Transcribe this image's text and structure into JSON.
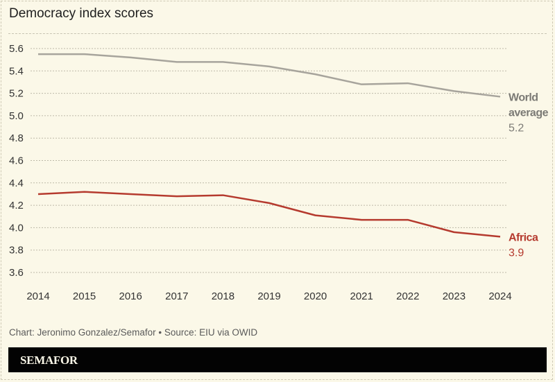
{
  "header": {
    "title": "Democracy index scores"
  },
  "footer": {
    "credit": "Chart: Jeronimo Gonzalez/Semafor • Source: EIU via OWID",
    "brand": "SEMAFOR"
  },
  "chart_data": {
    "type": "line",
    "title": "Democracy index scores",
    "xlabel": "",
    "ylabel": "",
    "x": [
      2014,
      2015,
      2016,
      2017,
      2018,
      2019,
      2020,
      2021,
      2022,
      2023,
      2024
    ],
    "x_tick_labels": [
      "2014",
      "2015",
      "2016",
      "2017",
      "2018",
      "2019",
      "2020",
      "2021",
      "2022",
      "2023",
      "2024"
    ],
    "y_ticks": [
      5.6,
      5.4,
      5.2,
      5.0,
      4.8,
      4.6,
      4.4,
      4.2,
      4.0,
      3.8,
      3.6
    ],
    "y_tick_labels": [
      "5.6",
      "5.4",
      "5.2",
      "5.0",
      "4.8",
      "4.6",
      "4.4",
      "4.2",
      "4.0",
      "3.8",
      "3.6"
    ],
    "ylim": [
      3.6,
      5.6
    ],
    "grid": true,
    "series": [
      {
        "name": "World average",
        "label_lines": [
          "World",
          "average"
        ],
        "end_value_label": "5.2",
        "color": "#a7a49c",
        "label_color": "#7b7a75",
        "values": [
          5.55,
          5.55,
          5.52,
          5.48,
          5.48,
          5.44,
          5.37,
          5.28,
          5.29,
          5.22,
          5.17
        ]
      },
      {
        "name": "Africa",
        "label_lines": [
          "Africa"
        ],
        "end_value_label": "3.9",
        "color": "#b53a2e",
        "label_color": "#b53a2e",
        "values": [
          4.3,
          4.32,
          4.3,
          4.28,
          4.29,
          4.22,
          4.11,
          4.07,
          4.07,
          3.96,
          3.92
        ]
      }
    ]
  }
}
